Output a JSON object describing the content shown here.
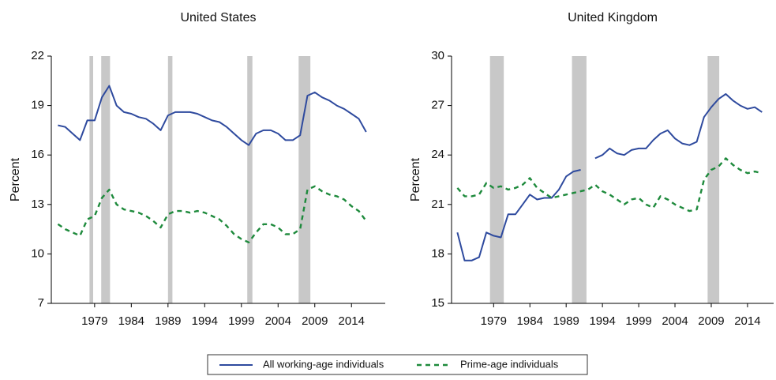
{
  "chart_data": [
    {
      "type": "line",
      "title": "United States",
      "y_label": "Percent",
      "x": [
        1974,
        1975,
        1976,
        1977,
        1978,
        1979,
        1980,
        1981,
        1982,
        1983,
        1984,
        1985,
        1986,
        1987,
        1988,
        1989,
        1990,
        1991,
        1992,
        1993,
        1994,
        1995,
        1996,
        1997,
        1998,
        1999,
        2000,
        2001,
        2002,
        2003,
        2004,
        2005,
        2006,
        2007,
        2008,
        2009,
        2010,
        2011,
        2012,
        2013,
        2014,
        2015,
        2016
      ],
      "series": [
        {
          "name": "All working-age individuals",
          "color": "#2e4a9e",
          "dash": false,
          "values": [
            17.8,
            17.7,
            17.3,
            16.9,
            18.1,
            18.1,
            19.5,
            20.2,
            19.0,
            18.6,
            18.5,
            18.3,
            18.2,
            17.9,
            17.5,
            18.4,
            18.6,
            18.6,
            18.6,
            18.5,
            18.3,
            18.1,
            18.0,
            17.7,
            17.3,
            16.9,
            16.6,
            17.3,
            17.5,
            17.5,
            17.3,
            16.9,
            16.9,
            17.2,
            19.6,
            19.8,
            19.5,
            19.3,
            19.0,
            18.8,
            18.5,
            18.2,
            17.4
          ]
        },
        {
          "name": "Prime-age individuals",
          "color": "#1e8a3c",
          "dash": true,
          "values": [
            11.8,
            11.5,
            11.3,
            11.1,
            12.1,
            12.3,
            13.4,
            13.9,
            13.0,
            12.7,
            12.6,
            12.5,
            12.3,
            12.0,
            11.6,
            12.4,
            12.6,
            12.6,
            12.5,
            12.6,
            12.5,
            12.3,
            12.1,
            11.7,
            11.2,
            10.9,
            10.7,
            11.3,
            11.8,
            11.8,
            11.6,
            11.2,
            11.2,
            11.5,
            13.9,
            14.1,
            13.8,
            13.6,
            13.5,
            13.3,
            12.9,
            12.6,
            12.0
          ]
        }
      ],
      "recessions": [
        [
          1978.3,
          1978.8
        ],
        [
          1979.9,
          1981.1
        ],
        [
          1989.0,
          1989.6
        ],
        [
          1999.8,
          2000.5
        ],
        [
          2006.8,
          2008.4
        ]
      ],
      "recession_color": "#c8c8c8",
      "xlim": [
        1973.1,
        2018.6
      ],
      "xticks": [
        1979,
        1984,
        1989,
        1994,
        1999,
        2004,
        2009,
        2014
      ],
      "ylim": [
        7,
        22
      ],
      "yticks": [
        7,
        10,
        13,
        16,
        19,
        22
      ]
    },
    {
      "type": "line",
      "title": "United Kingdom",
      "y_label": "Percent",
      "x": [
        1974,
        1975,
        1976,
        1977,
        1978,
        1979,
        1980,
        1981,
        1982,
        1983,
        1984,
        1985,
        1986,
        1987,
        1988,
        1989,
        1990,
        1991,
        1992,
        1993,
        1994,
        1995,
        1996,
        1997,
        1998,
        1999,
        2000,
        2001,
        2002,
        2003,
        2004,
        2005,
        2006,
        2007,
        2008,
        2009,
        2010,
        2011,
        2012,
        2013,
        2014,
        2015,
        2016
      ],
      "series": [
        {
          "color": "#2e4a9e",
          "dash": false,
          "values": [
            19.3,
            17.6,
            17.6,
            17.8,
            19.3,
            19.1,
            19.0,
            20.4,
            20.4,
            21.0,
            21.6,
            21.3,
            21.4,
            21.4,
            21.9,
            22.7,
            23.0,
            23.1,
            null,
            23.8,
            24.0,
            24.4,
            24.1,
            24.0,
            24.3,
            24.4,
            24.4,
            24.9,
            25.3,
            25.5,
            25.0,
            24.7,
            24.6,
            24.8,
            26.3,
            26.9,
            27.4,
            27.7,
            27.3,
            27.0,
            26.8,
            26.9,
            26.6
          ]
        },
        {
          "color": "#1e8a3c",
          "dash": true,
          "values": [
            22.0,
            21.5,
            21.5,
            21.6,
            22.3,
            22.0,
            22.1,
            21.9,
            22.0,
            22.2,
            22.6,
            22.0,
            21.7,
            21.4,
            21.5,
            21.6,
            21.7,
            21.8,
            21.9,
            22.2,
            21.8,
            21.6,
            21.3,
            21.0,
            21.3,
            21.4,
            21.0,
            20.8,
            21.5,
            21.3,
            21.0,
            20.8,
            20.6,
            20.7,
            22.5,
            23.1,
            23.3,
            23.8,
            23.4,
            23.1,
            22.9,
            23.0,
            22.9
          ]
        }
      ],
      "recessions": [
        [
          1978.5,
          1980.4
        ],
        [
          1989.8,
          1991.8
        ],
        [
          2008.5,
          2010.1
        ]
      ],
      "recession_color": "#c8c8c8",
      "xlim": [
        1973.2,
        2017.6
      ],
      "xticks": [
        1979,
        1984,
        1989,
        1994,
        1999,
        2004,
        2009,
        2014
      ],
      "ylim": [
        15,
        30
      ],
      "yticks": [
        15,
        18,
        21,
        24,
        27,
        30
      ]
    }
  ]
}
